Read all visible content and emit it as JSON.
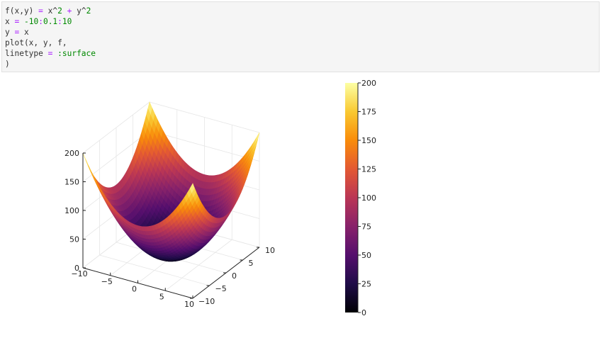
{
  "cell": {
    "lines": [
      [
        {
          "t": "f(x,y) ",
          "c": "plain"
        },
        {
          "t": "=",
          "c": "op"
        },
        {
          "t": " x^",
          "c": "plain"
        },
        {
          "t": "2",
          "c": "num"
        },
        {
          "t": " ",
          "c": "plain"
        },
        {
          "t": "+",
          "c": "op"
        },
        {
          "t": " y^",
          "c": "plain"
        },
        {
          "t": "2",
          "c": "num"
        }
      ],
      [
        {
          "t": "x ",
          "c": "plain"
        },
        {
          "t": "=",
          "c": "op"
        },
        {
          "t": " ",
          "c": "plain"
        },
        {
          "t": "-10",
          "c": "num"
        },
        {
          "t": ":",
          "c": "op"
        },
        {
          "t": "0.1",
          "c": "num"
        },
        {
          "t": ":",
          "c": "op"
        },
        {
          "t": "10",
          "c": "num"
        }
      ],
      [
        {
          "t": "y ",
          "c": "plain"
        },
        {
          "t": "=",
          "c": "op"
        },
        {
          "t": " x",
          "c": "plain"
        }
      ],
      [
        {
          "t": "plot(x, y, f,",
          "c": "plain"
        }
      ],
      [
        {
          "t": "linetype ",
          "c": "plain"
        },
        {
          "t": "=",
          "c": "op"
        },
        {
          "t": " ",
          "c": "plain"
        },
        {
          "t": ":surface",
          "c": "sym"
        }
      ],
      [
        {
          "t": ")",
          "c": "plain"
        }
      ]
    ]
  },
  "colors": {
    "plain": "#333333",
    "op": "#aa22ff",
    "num": "#008800",
    "sym": "#008800"
  },
  "chart_data": {
    "type": "surface",
    "function": "f(x,y) = x^2 + y^2",
    "x_range": [
      -10,
      10
    ],
    "y_range": [
      -10,
      10
    ],
    "z_range": [
      0,
      200
    ],
    "x_ticks": [
      "−10",
      "−5",
      "0",
      "5",
      "10"
    ],
    "y_ticks": [
      "−10",
      "−5",
      "0",
      "5",
      "10"
    ],
    "z_ticks": [
      "0",
      "50",
      "100",
      "150",
      "200"
    ],
    "colorbar": {
      "colormap": "inferno",
      "range": [
        0,
        200
      ],
      "ticks": [
        "0",
        "25",
        "50",
        "75",
        "100",
        "125",
        "150",
        "175",
        "200"
      ]
    },
    "grid": true,
    "legend": "none"
  }
}
